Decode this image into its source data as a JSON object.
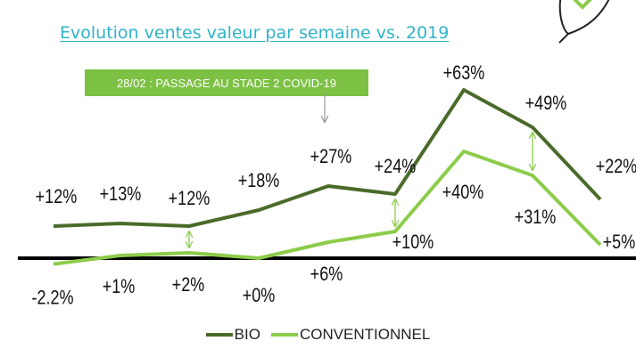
{
  "title": "Evolution ventes valeur par semaine vs. 2019",
  "annotation": "28/02 : PASSAGE AU STADE 2 COVID-19",
  "colors": {
    "bio": "#4a6b2a",
    "conventionnel": "#8ccc4a",
    "title": "#2fb3c9",
    "annotation_bg": "#7dc144"
  },
  "legend": {
    "bio": "BIO",
    "conventionnel": "CONVENTIONNEL"
  },
  "chart_data": {
    "type": "line",
    "x": [
      1,
      2,
      3,
      4,
      5,
      6,
      7,
      8,
      9
    ],
    "series": [
      {
        "name": "BIO",
        "values": [
          12,
          13,
          12,
          18,
          27,
          24,
          63,
          49,
          22
        ],
        "labels": [
          "+12%",
          "+13%",
          "+12%",
          "+18%",
          "+27%",
          "+24%",
          "+63%",
          "+49%",
          "+22%"
        ]
      },
      {
        "name": "CONVENTIONNEL",
        "values": [
          -2.2,
          1,
          2,
          0,
          6,
          10,
          40,
          31,
          5
        ],
        "labels": [
          "-2.2%",
          "+1%",
          "+2%",
          "+0%",
          "+6%",
          "+10%",
          "+40%",
          "+31%",
          "+5%"
        ]
      }
    ],
    "ylim": [
      -5,
      68
    ],
    "gap_arrows_at": [
      2,
      5,
      7
    ],
    "grid": false,
    "legend_position": "bottom-center"
  }
}
